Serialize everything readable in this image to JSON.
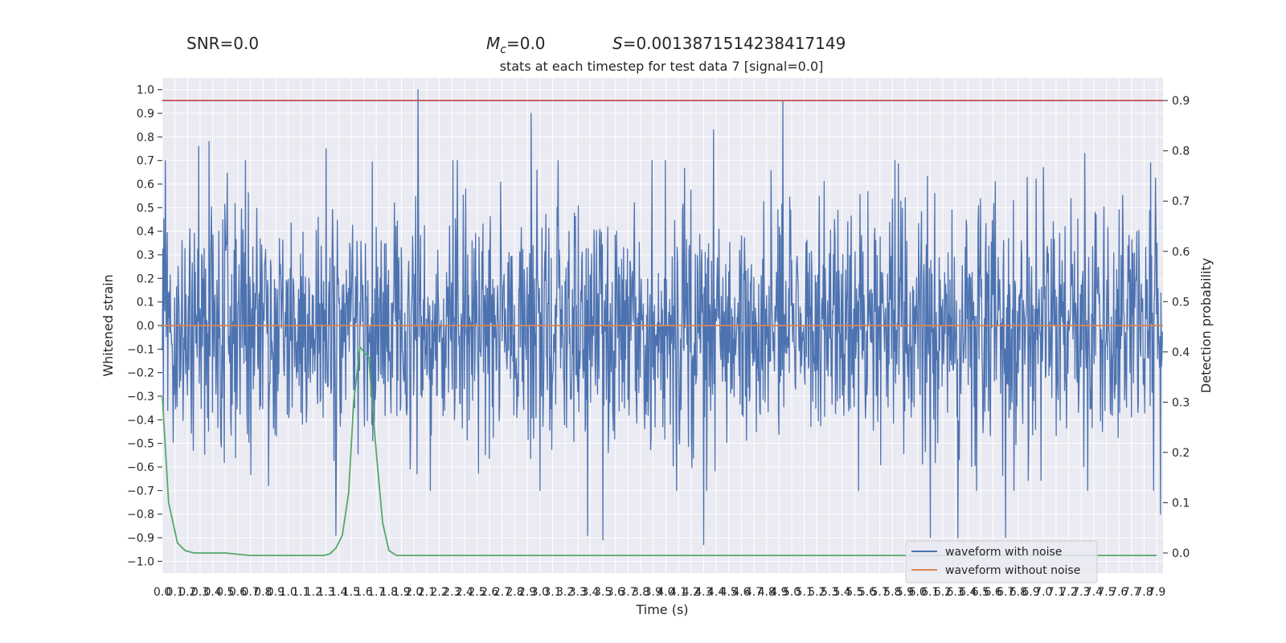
{
  "header": {
    "snr": "SNR=0.0",
    "mc_symbol": "M",
    "mc_sub": "c",
    "mc_value": "=0.0",
    "s_symbol": "S",
    "s_value": "=0.0013871514238417149"
  },
  "chart_data": {
    "type": "line",
    "title": "stats at each timestep for test data 7 [signal=0.0]",
    "xlabel": "Time (s)",
    "ylabel_left": "Whitened strain",
    "ylabel_right": "Detection probability",
    "xlim": [
      0.0,
      7.95
    ],
    "ylim_left": [
      -1.05,
      1.05
    ],
    "ylim_right": [
      -0.04,
      0.945
    ],
    "x_ticks": [
      "0.0",
      "0.1",
      "0.2",
      "0.3",
      "0.4",
      "0.5",
      "0.6",
      "0.7",
      "0.8",
      "0.9",
      "1.0",
      "1.1",
      "1.2",
      "1.3",
      "1.4",
      "1.5",
      "1.6",
      "1.7",
      "1.8",
      "1.9",
      "2.0",
      "2.1",
      "2.2",
      "2.3",
      "2.4",
      "2.5",
      "2.6",
      "2.7",
      "2.8",
      "2.9",
      "3.0",
      "3.1",
      "3.2",
      "3.3",
      "3.4",
      "3.5",
      "3.6",
      "3.7",
      "3.8",
      "3.9",
      "4.0",
      "4.1",
      "4.2",
      "4.3",
      "4.4",
      "4.5",
      "4.6",
      "4.7",
      "4.8",
      "4.9",
      "5.0",
      "5.1",
      "5.2",
      "5.3",
      "5.4",
      "5.5",
      "5.6",
      "5.7",
      "5.8",
      "5.9",
      "6.0",
      "6.1",
      "6.2",
      "6.3",
      "6.4",
      "6.5",
      "6.6",
      "6.7",
      "6.8",
      "6.9",
      "7.0",
      "7.1",
      "7.2",
      "7.3",
      "7.4",
      "7.5",
      "7.6",
      "7.7",
      "7.8",
      "7.9"
    ],
    "y_ticks_left": [
      "1.0",
      "0.9",
      "0.8",
      "0.7",
      "0.6",
      "0.5",
      "0.4",
      "0.3",
      "0.2",
      "0.1",
      "0.0",
      "−0.1",
      "−0.2",
      "−0.3",
      "−0.4",
      "−0.5",
      "−0.6",
      "−0.7",
      "−0.8",
      "−0.9",
      "−1.0"
    ],
    "y_ticks_right": [
      "0.9",
      "0.8",
      "0.7",
      "0.6",
      "0.5",
      "0.4",
      "0.3",
      "0.2",
      "0.1",
      "0.0"
    ],
    "threshold": 0.9,
    "series": [
      {
        "name": "waveform with noise",
        "color": "#4c72b0",
        "axis": "left",
        "sample_rate": 256,
        "duration": 7.95,
        "peaks_high": [
          [
            0.29,
            0.76
          ],
          [
            0.37,
            0.78
          ],
          [
            1.3,
            0.75
          ],
          [
            2.03,
            1.0
          ],
          [
            2.93,
            0.9
          ],
          [
            4.38,
            0.83
          ],
          [
            4.93,
            0.95
          ],
          [
            7.33,
            0.73
          ],
          [
            7.85,
            0.69
          ]
        ],
        "peaks_low": [
          [
            1.38,
            -0.89
          ],
          [
            3.38,
            -0.89
          ],
          [
            3.5,
            -0.91
          ],
          [
            4.3,
            -0.93
          ],
          [
            6.1,
            -0.9
          ],
          [
            6.32,
            -0.9
          ],
          [
            6.7,
            -0.9
          ],
          [
            7.93,
            -0.8
          ]
        ]
      },
      {
        "name": "waveform without noise",
        "color": "#dd8452",
        "axis": "left",
        "constant": 0.0
      },
      {
        "name": "",
        "color": "#55a868",
        "axis": "right",
        "x": [
          0.0,
          0.05,
          0.12,
          0.18,
          0.25,
          0.35,
          0.5,
          0.7,
          0.9,
          1.1,
          1.2,
          1.28,
          1.33,
          1.38,
          1.43,
          1.48,
          1.52,
          1.57,
          1.6,
          1.64,
          1.67,
          1.71,
          1.75,
          1.8,
          1.86,
          1.95,
          2.5,
          3.5,
          3.7,
          4.0,
          5.0,
          6.0,
          7.0,
          7.9
        ],
        "y": [
          0.31,
          0.1,
          0.02,
          0.005,
          0.0,
          0.0,
          0.0,
          -0.005,
          -0.005,
          -0.005,
          -0.005,
          -0.005,
          -0.002,
          0.01,
          0.035,
          0.12,
          0.3,
          0.41,
          0.4,
          0.39,
          0.29,
          0.17,
          0.06,
          0.005,
          -0.005,
          -0.005,
          -0.005,
          -0.005,
          -0.005,
          -0.005,
          -0.005,
          -0.005,
          -0.005,
          -0.005
        ]
      }
    ],
    "legend": {
      "position": "lower-right",
      "entries": [
        "waveform with noise",
        "waveform without noise"
      ]
    }
  }
}
